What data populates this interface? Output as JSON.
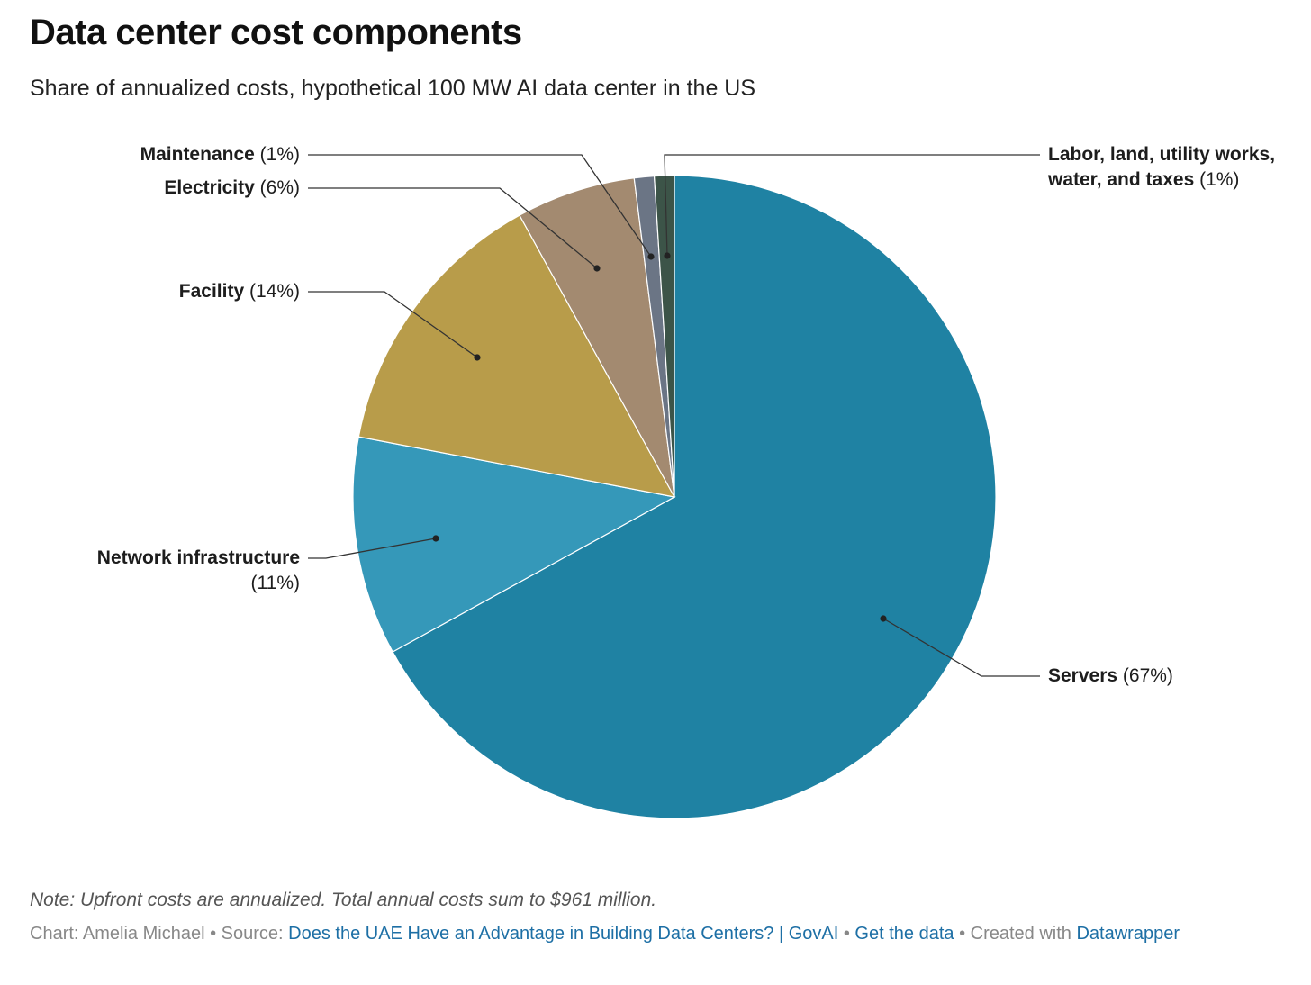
{
  "chart_data": {
    "type": "pie",
    "title": "Data center cost components",
    "subtitle": "Share of annualized costs, hypothetical 100 MW AI data center in the US",
    "slices": [
      {
        "name": "Servers",
        "value": 67,
        "label": "(67%)",
        "color": "#1f82a3"
      },
      {
        "name": "Network infrastructure",
        "value": 11,
        "label": "(11%)",
        "color": "#3598b9"
      },
      {
        "name": "Facility",
        "value": 14,
        "label": "(14%)",
        "color": "#b89c4a"
      },
      {
        "name": "Electricity",
        "value": 6,
        "label": "(6%)",
        "color": "#a38a70"
      },
      {
        "name": "Maintenance",
        "value": 1,
        "label": "(1%)",
        "color": "#6b7585"
      },
      {
        "name": "Labor, land, utility works, water, and taxes",
        "name_line1": "Labor, land, utility works,",
        "name_line2": "water, and taxes",
        "value": 1,
        "label": "(1%)",
        "color": "#3c5448"
      }
    ]
  },
  "notes": {
    "note": "Note: Upfront costs are annualized. Total annual costs sum to $961 million."
  },
  "footer": {
    "chart_prefix": "Chart: Amelia Michael",
    "source_prefix": "Source:",
    "source_link": "Does the UAE Have an Advantage in Building Data Centers? | GovAI",
    "data_link": "Get the data",
    "created_prefix": "Created with",
    "tool_link": "Datawrapper",
    "separator": "•"
  }
}
